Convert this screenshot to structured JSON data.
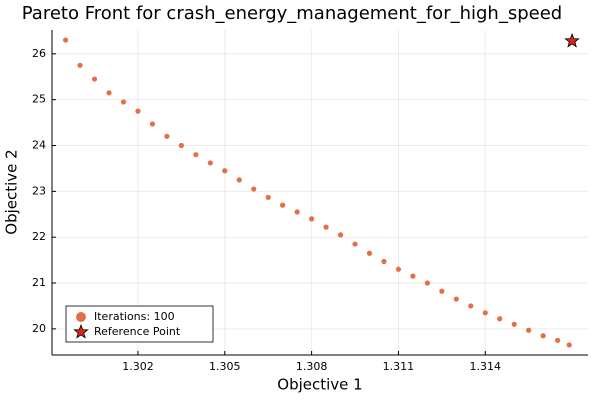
{
  "chart_data": {
    "type": "scatter",
    "title": "Pareto Front for crash_energy_management_for_high_speed",
    "x_label": "Objective 1",
    "y_label": "Objective 2",
    "xlim": [
      1.29903,
      1.31755
    ],
    "xticks": [
      1.302,
      1.305,
      1.308,
      1.311,
      1.314
    ],
    "ylim": [
      19.43,
      26.52
    ],
    "yticks": [
      20,
      21,
      22,
      23,
      24,
      25,
      26
    ],
    "grid": true,
    "legend": "bottom-left",
    "series": [
      {
        "name": "Iterations: 100",
        "color": "#e26f46",
        "marker": "circle",
        "x": [
          1.2995,
          1.3,
          1.3005,
          1.301,
          1.3015,
          1.302,
          1.3025,
          1.303,
          1.3035,
          1.304,
          1.3045,
          1.305,
          1.3055,
          1.306,
          1.3065,
          1.307,
          1.3075,
          1.308,
          1.3085,
          1.309,
          1.3095,
          1.31,
          1.3105,
          1.311,
          1.3115,
          1.312,
          1.3125,
          1.313,
          1.3135,
          1.314,
          1.3145,
          1.315,
          1.3155,
          1.316,
          1.3165,
          1.3169
        ],
        "values": [
          26.3,
          25.75,
          25.45,
          25.15,
          24.95,
          24.75,
          24.47,
          24.2,
          24.0,
          23.8,
          23.62,
          23.45,
          23.25,
          23.05,
          22.87,
          22.7,
          22.55,
          22.4,
          22.22,
          22.05,
          21.85,
          21.65,
          21.47,
          21.3,
          21.15,
          21.0,
          20.82,
          20.65,
          20.5,
          20.35,
          20.22,
          20.1,
          19.97,
          19.85,
          19.75,
          19.65
        ]
      },
      {
        "name": "Reference Point",
        "color": "#e0231c",
        "marker": "star",
        "x": [
          1.317
        ],
        "values": [
          26.28
        ]
      }
    ]
  }
}
